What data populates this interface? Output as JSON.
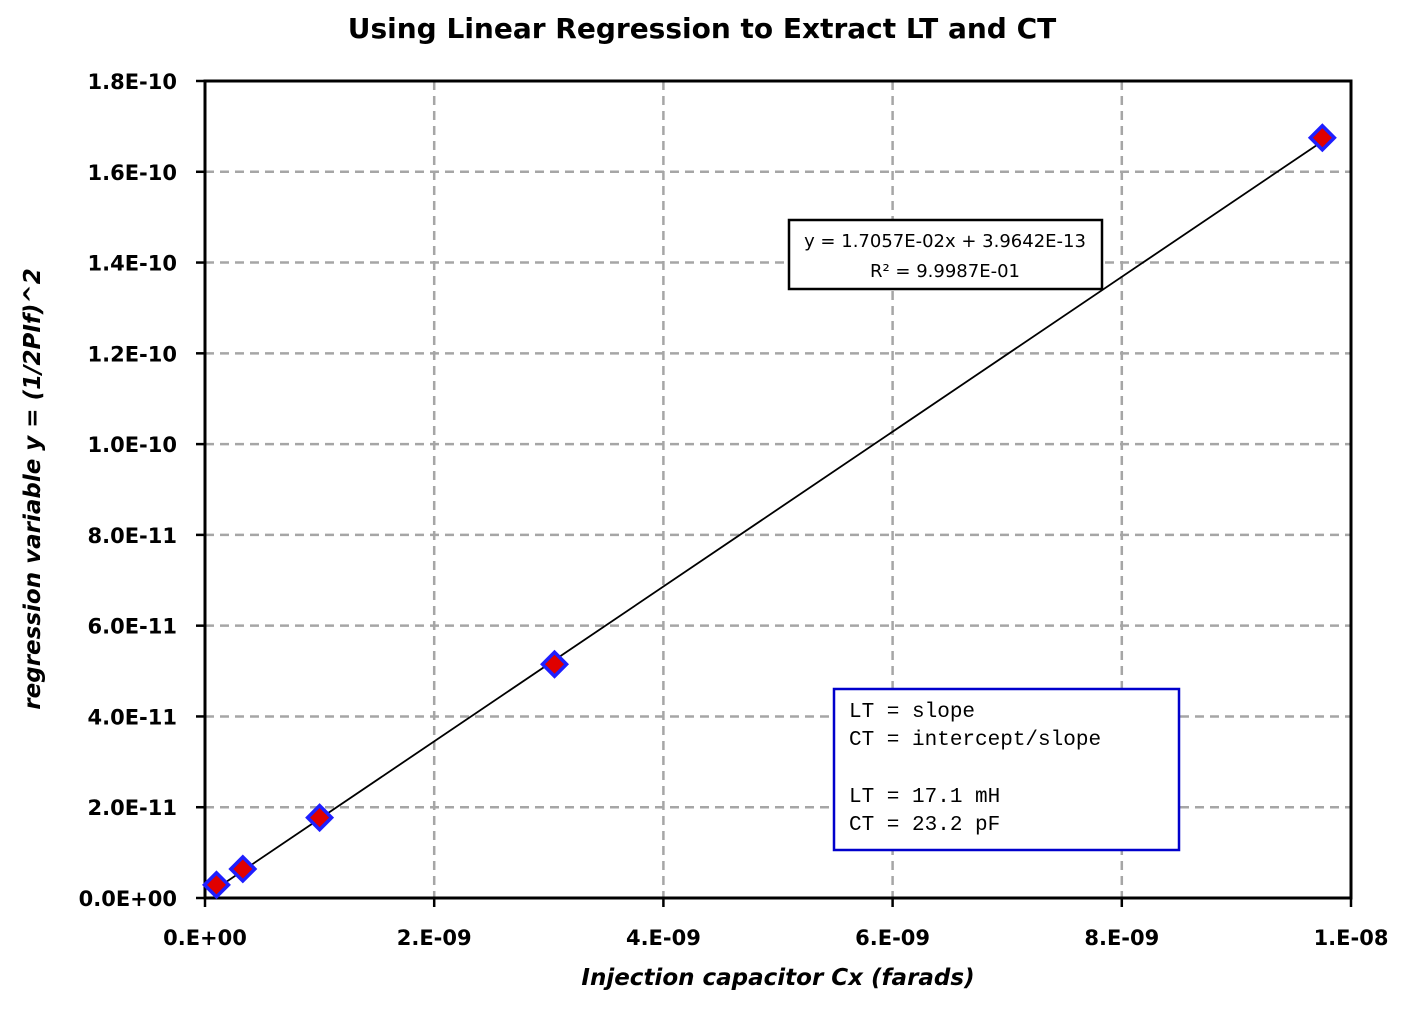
{
  "chart_data": {
    "type": "scatter",
    "title": "Using Linear Regression to Extract LT and CT",
    "xlabel": "Injection capacitor Cx (farads)",
    "ylabel": "regression variable y = (1/2PIf)^2",
    "xlim": [
      0,
      1e-08
    ],
    "ylim": [
      0,
      1.8e-10
    ],
    "x_ticks": [
      0,
      2e-09,
      4e-09,
      6e-09,
      8e-09,
      1e-08
    ],
    "x_tick_labels": [
      "0.E+00",
      "2.E-09",
      "4.E-09",
      "6.E-09",
      "8.E-09",
      "1.E-08"
    ],
    "y_ticks": [
      0,
      2e-11,
      4e-11,
      6e-11,
      8e-11,
      1e-10,
      1.2e-10,
      1.4e-10,
      1.6e-10,
      1.8e-10
    ],
    "y_tick_labels": [
      "0.0E+00",
      "2.0E-11",
      "4.0E-11",
      "6.0E-11",
      "8.0E-11",
      "1.0E-10",
      "1.2E-10",
      "1.4E-10",
      "1.6E-10",
      "1.8E-10"
    ],
    "grid": true,
    "series": [
      {
        "x": [
          1e-10,
          3.3e-10,
          1e-09,
          3.05e-09,
          9.75e-09
        ],
        "y": [
          2.9e-12,
          6.4e-12,
          1.77e-11,
          5.15e-11,
          1.675e-10
        ],
        "marker": "diamond",
        "marker_fill": "#e00000",
        "marker_edge": "#1f1fff"
      }
    ],
    "trendline": {
      "slope": 0.017057,
      "intercept": 3.9642e-13,
      "color": "#000000",
      "equation_label": "y = 1.7057E-02x + 3.9642E-13",
      "r2_label": "R² = 9.9987E-01"
    },
    "annotation": {
      "lines": [
        "LT = slope",
        "CT = intercept/slope",
        "",
        "LT = 17.1 mH",
        "CT = 23.2 pF"
      ],
      "border_color": "#0000cc"
    }
  }
}
